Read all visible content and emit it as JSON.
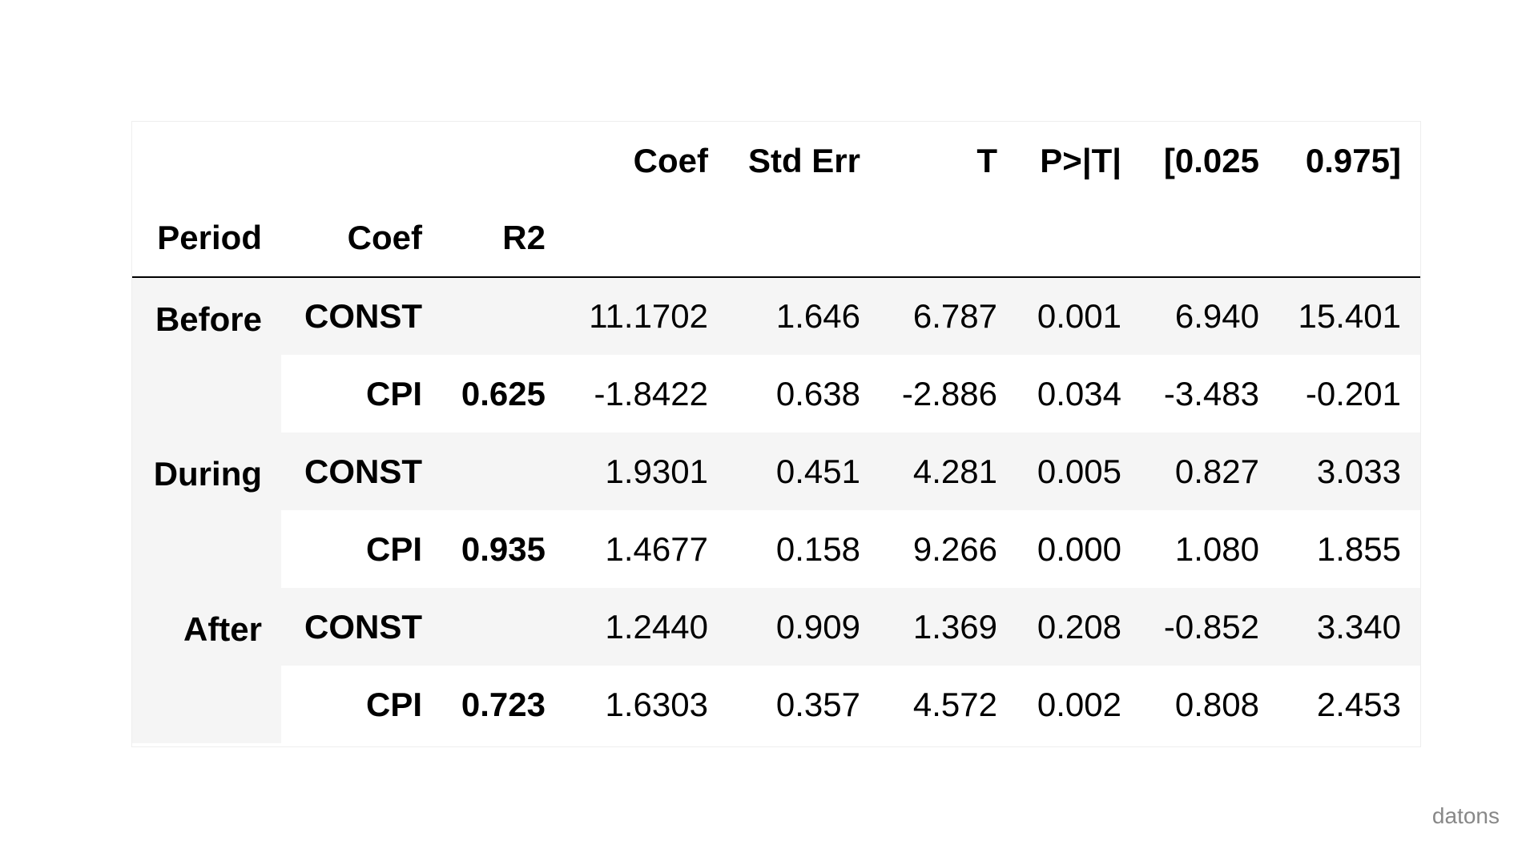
{
  "table": {
    "top_header": [
      "Coef",
      "Std Err",
      "T",
      "P>|T|",
      "[0.025",
      "0.975]"
    ],
    "index_header": [
      "Period",
      "Coef",
      "R2"
    ],
    "rows": [
      {
        "period": "Before",
        "coef": "CONST",
        "r2": "",
        "values": [
          "11.1702",
          "1.646",
          "6.787",
          "0.001",
          "6.940",
          "15.401"
        ]
      },
      {
        "period": "",
        "coef": "CPI",
        "r2": "0.625",
        "values": [
          "-1.8422",
          "0.638",
          "-2.886",
          "0.034",
          "-3.483",
          "-0.201"
        ]
      },
      {
        "period": "During",
        "coef": "CONST",
        "r2": "",
        "values": [
          "1.9301",
          "0.451",
          "4.281",
          "0.005",
          "0.827",
          "3.033"
        ]
      },
      {
        "period": "",
        "coef": "CPI",
        "r2": "0.935",
        "values": [
          "1.4677",
          "0.158",
          "9.266",
          "0.000",
          "1.080",
          "1.855"
        ]
      },
      {
        "period": "After",
        "coef": "CONST",
        "r2": "",
        "values": [
          "1.2440",
          "0.909",
          "1.369",
          "0.208",
          "-0.852",
          "3.340"
        ]
      },
      {
        "period": "",
        "coef": "CPI",
        "r2": "0.723",
        "values": [
          "1.6303",
          "0.357",
          "4.572",
          "0.002",
          "0.808",
          "2.453"
        ]
      }
    ]
  },
  "watermark": "datons",
  "colors": {
    "stripe": "#f5f5f5",
    "border": "#000000",
    "watermark": "#888888"
  }
}
